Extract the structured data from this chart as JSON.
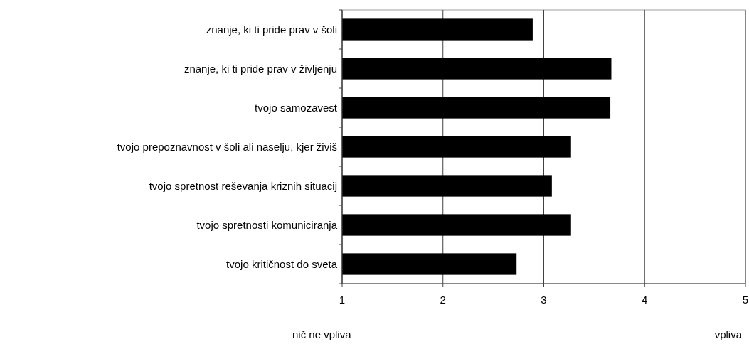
{
  "chart_data": {
    "type": "bar",
    "orientation": "horizontal",
    "categories": [
      "znanje, ki ti pride prav v šoli",
      "znanje, ki ti pride prav v življenju",
      "tvojo samozavest",
      "tvojo prepoznavnost v šoli ali naselju, kjer živiš",
      "tvojo spretnost reševanja kriznih situacij",
      "tvojo spretnosti komuniciranja",
      "tvojo kritičnost do sveta"
    ],
    "values": [
      2.89,
      3.67,
      3.66,
      3.27,
      3.08,
      3.27,
      2.73
    ],
    "color": "#000000",
    "xlim": [
      1,
      5
    ],
    "xticks": [
      1,
      2,
      3,
      4,
      5
    ],
    "grid": "x",
    "annotations": [
      "nič ne vpliva",
      "vpliva"
    ]
  }
}
